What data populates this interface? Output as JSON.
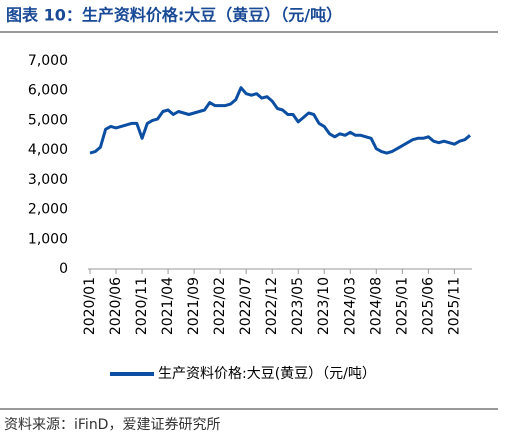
{
  "chart_data": {
    "type": "line",
    "title": "图表 10：生产资料价格:大豆（黄豆）（元/吨）",
    "source": "资料来源：iFinD，爱建证券研究所",
    "categories": [
      "2020/01",
      null,
      null,
      null,
      null,
      "2020/06",
      null,
      null,
      null,
      null,
      "2020/11",
      null,
      null,
      null,
      null,
      "2021/04",
      null,
      null,
      null,
      null,
      "2021/09",
      null,
      null,
      null,
      null,
      "2022/02",
      null,
      null,
      null,
      null,
      "2022/07",
      null,
      null,
      null,
      null,
      "2022/12",
      null,
      null,
      null,
      null,
      "2023/05",
      null,
      null,
      null,
      null,
      "2023/10",
      null,
      null,
      null,
      null,
      "2024/03",
      null,
      null,
      null,
      null,
      "2024/08",
      null,
      null,
      null,
      null,
      "2025/01",
      null,
      null,
      null,
      null,
      "2025/06",
      null,
      null,
      null,
      null,
      "2025/11",
      null,
      null,
      null
    ],
    "series": [
      {
        "name": "生产资料价格:大豆(黄豆）（元/吨）",
        "color": "#0b4ea2",
        "values": [
          3900,
          3950,
          4100,
          4700,
          4800,
          4750,
          4800,
          4850,
          4900,
          4900,
          4400,
          4900,
          5000,
          5050,
          5300,
          5350,
          5200,
          5300,
          5250,
          5200,
          5250,
          5300,
          5350,
          5600,
          5500,
          5500,
          5500,
          5550,
          5700,
          6100,
          5900,
          5850,
          5900,
          5750,
          5800,
          5650,
          5400,
          5350,
          5200,
          5200,
          4950,
          5100,
          5250,
          5200,
          4900,
          4800,
          4550,
          4450,
          4550,
          4500,
          4600,
          4500,
          4500,
          4450,
          4400,
          4050,
          3950,
          3900,
          3950,
          4050,
          4150,
          4250,
          4350,
          4400,
          4400,
          4450,
          4300,
          4250,
          4300,
          4250,
          4200,
          4300,
          4350,
          4500
        ]
      }
    ],
    "ylim": [
      0,
      7000
    ],
    "yticks": [
      0,
      {
        "value": 1000,
        "label": "1,000"
      },
      {
        "value": 2000,
        "label": "2,000"
      },
      {
        "value": 3000,
        "label": "3,000"
      },
      {
        "value": 4000,
        "label": "4,000"
      },
      {
        "value": 5000,
        "label": "5,000"
      },
      {
        "value": 6000,
        "label": "6,000"
      },
      {
        "value": 7000,
        "label": "7,000"
      }
    ],
    "grid": false
  }
}
